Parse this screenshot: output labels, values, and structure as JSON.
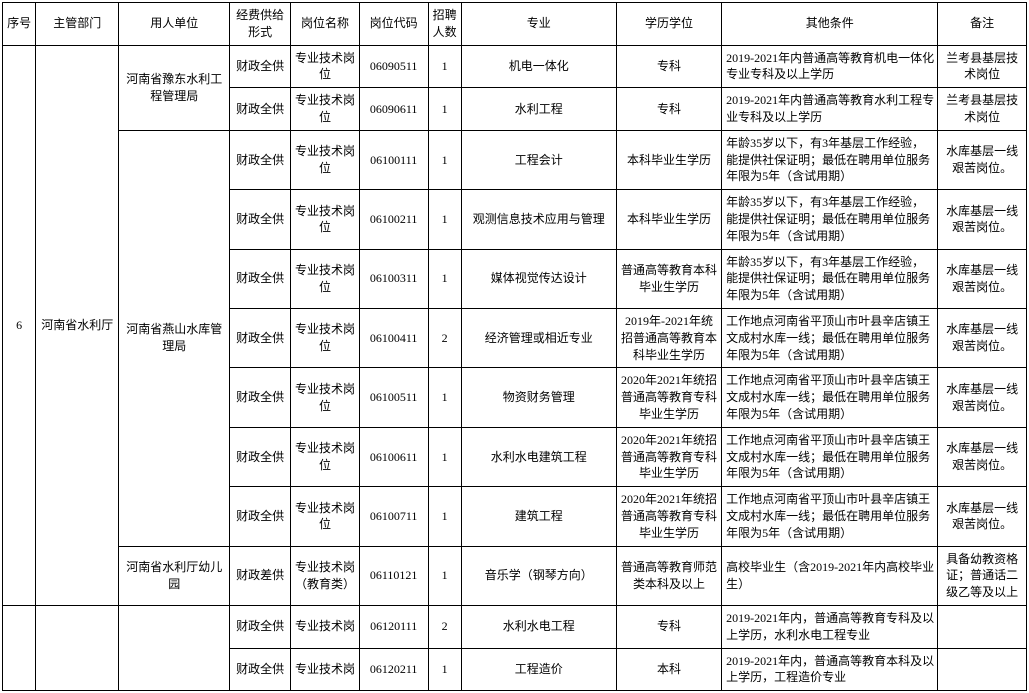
{
  "headers": {
    "seq": "序号",
    "dept": "主管部门",
    "unit": "用人单位",
    "fund": "经费供给形式",
    "post": "岗位名称",
    "code": "岗位代码",
    "num": "招聘人数",
    "major": "专业",
    "edu": "学历学位",
    "other": "其他条件",
    "note": "备注"
  },
  "seq": "6",
  "dept": "河南省水利厅",
  "units": {
    "u1": "河南省豫东水利工程管理局",
    "u2": "河南省燕山水库管理局",
    "u3": "河南省水利厅幼儿园"
  },
  "rows": [
    {
      "fund": "财政全供",
      "post": "专业技术岗位",
      "code": "06090511",
      "num": "1",
      "major": "机电一体化",
      "edu": "专科",
      "other": "2019-2021年内普通高等教育机电一体化专业专科及以上学历",
      "note": "兰考县基层技术岗位"
    },
    {
      "fund": "财政全供",
      "post": "专业技术岗位",
      "code": "06090611",
      "num": "1",
      "major": "水利工程",
      "edu": "专科",
      "other": "2019-2021年内普通高等教育水利工程专业专科及以上学历",
      "note": "兰考县基层技术岗位"
    },
    {
      "fund": "财政全供",
      "post": "专业技术岗位",
      "code": "06100111",
      "num": "1",
      "major": "工程会计",
      "edu": "本科毕业生学历",
      "other": "年龄35岁以下，有3年基层工作经验，能提供社保证明；最低在聘用单位服务年限为5年（含试用期）",
      "note": "水库基层一线艰苦岗位。"
    },
    {
      "fund": "财政全供",
      "post": "专业技术岗位",
      "code": "06100211",
      "num": "1",
      "major": "观测信息技术应用与管理",
      "edu": "本科毕业生学历",
      "other": "年龄35岁以下，有3年基层工作经验，能提供社保证明；最低在聘用单位服务年限为5年（含试用期）",
      "note": "水库基层一线艰苦岗位。"
    },
    {
      "fund": "财政全供",
      "post": "专业技术岗位",
      "code": "06100311",
      "num": "1",
      "major": "媒体视觉传达设计",
      "edu": "普通高等教育本科毕业生学历",
      "other": "年龄35岁以下，有3年基层工作经验，能提供社保证明；最低在聘用单位服务年限为5年（含试用期）",
      "note": "水库基层一线艰苦岗位。"
    },
    {
      "fund": "财政全供",
      "post": "专业技术岗位",
      "code": "06100411",
      "num": "2",
      "major": "经济管理或相近专业",
      "edu": "2019年-2021年统招普通高等教育本科毕业生学历",
      "other": "工作地点河南省平顶山市叶县辛店镇王文成村水库一线；最低在聘用单位服务年限为5年（含试用期）",
      "note": "水库基层一线艰苦岗位。"
    },
    {
      "fund": "财政全供",
      "post": "专业技术岗位",
      "code": "06100511",
      "num": "1",
      "major": "物资财务管理",
      "edu": "2020年2021年统招普通高等教育专科毕业生学历",
      "other": "工作地点河南省平顶山市叶县辛店镇王文成村水库一线；最低在聘用单位服务年限为5年（含试用期）",
      "note": "水库基层一线艰苦岗位。"
    },
    {
      "fund": "财政全供",
      "post": "专业技术岗位",
      "code": "06100611",
      "num": "1",
      "major": "水利水电建筑工程",
      "edu": "2020年2021年统招普通高等教育专科毕业生学历",
      "other": "工作地点河南省平顶山市叶县辛店镇王文成村水库一线；最低在聘用单位服务年限为5年（含试用期）",
      "note": "水库基层一线艰苦岗位。"
    },
    {
      "fund": "财政全供",
      "post": "专业技术岗位",
      "code": "06100711",
      "num": "1",
      "major": "建筑工程",
      "edu": "2020年2021年统招普通高等教育专科毕业生学历",
      "other": "工作地点河南省平顶山市叶县辛店镇王文成村水库一线；最低在聘用单位服务年限为5年（含试用期）",
      "note": "水库基层一线艰苦岗位。"
    },
    {
      "fund": "财政差供",
      "post": "专业技术岗（教育类）",
      "code": "06110121",
      "num": "1",
      "major": "音乐学（钢琴方向）",
      "edu": "普通高等教育师范类本科及以上",
      "other": "高校毕业生（含2019-2021年内高校毕业生）",
      "note": "具备幼教资格证；普通话二级乙等及以上"
    },
    {
      "fund": "财政全供",
      "post": "专业技术岗",
      "code": "06120111",
      "num": "2",
      "major": "水利水电工程",
      "edu": "专科",
      "other": "2019-2021年内，普通高等教育专科及以上学历，水利水电工程专业",
      "note": ""
    },
    {
      "fund": "财政全供",
      "post": "专业技术岗",
      "code": "06120211",
      "num": "1",
      "major": "工程造价",
      "edu": "本科",
      "other": "2019-2021年内，普通高等教育本科及以上学历，工程造价专业",
      "note": ""
    }
  ]
}
